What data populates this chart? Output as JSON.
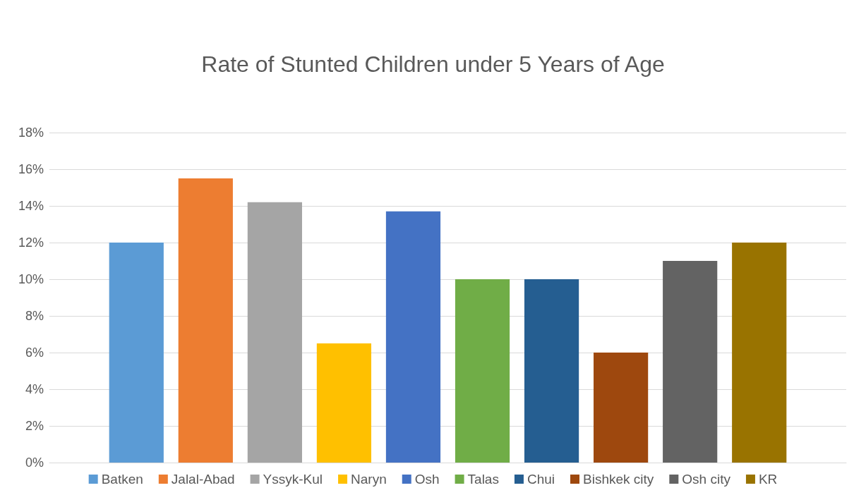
{
  "chart_data": {
    "type": "bar",
    "title": "Rate of Stunted Children under 5 Years of Age",
    "categories": [
      null
    ],
    "series": [
      {
        "name": "Batken",
        "color": "#5b9bd5",
        "values": [
          12
        ]
      },
      {
        "name": "Jalal-Abad",
        "color": "#ed7d31",
        "values": [
          15.5
        ]
      },
      {
        "name": "Yssyk-Kul",
        "color": "#a5a5a5",
        "values": [
          14.2
        ]
      },
      {
        "name": "Naryn",
        "color": "#ffc000",
        "values": [
          6.5
        ]
      },
      {
        "name": "Osh",
        "color": "#4472c4",
        "values": [
          13.7
        ]
      },
      {
        "name": "Talas",
        "color": "#70ad47",
        "values": [
          10
        ]
      },
      {
        "name": "Chui",
        "color": "#255e91",
        "values": [
          10
        ]
      },
      {
        "name": "Bishkek city",
        "color": "#9e480e",
        "values": [
          6
        ]
      },
      {
        "name": "Osh city",
        "color": "#636363",
        "values": [
          11
        ]
      },
      {
        "name": "KR",
        "color": "#997300",
        "values": [
          12
        ]
      }
    ],
    "ylim": [
      0,
      18
    ],
    "yticks": [
      {
        "value": 0,
        "label": "0%"
      },
      {
        "value": 2,
        "label": "2%"
      },
      {
        "value": 4,
        "label": "4%"
      },
      {
        "value": 6,
        "label": "6%"
      },
      {
        "value": 8,
        "label": "8%"
      },
      {
        "value": 10,
        "label": "10%"
      },
      {
        "value": 12,
        "label": "12%"
      },
      {
        "value": 14,
        "label": "14%"
      },
      {
        "value": 16,
        "label": "16%"
      },
      {
        "value": 18,
        "label": "18%"
      }
    ],
    "grid": "y",
    "legend": "bottom"
  }
}
